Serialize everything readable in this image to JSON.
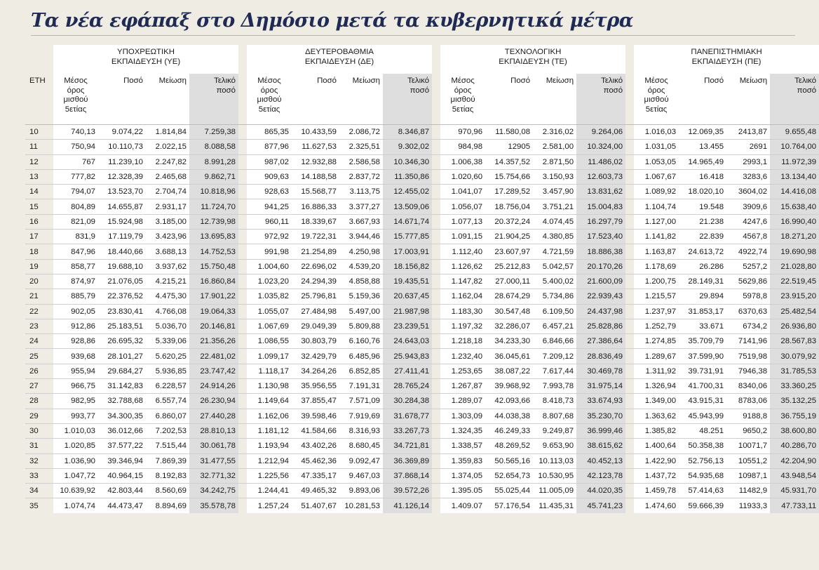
{
  "title": "Τα νέα εφάπαξ στο Δημόσιο μετά τα κυβερνητικά μέτρα",
  "header": {
    "eth_label": "ΕΤΗ",
    "groups": [
      [
        "ΥΠΟΧΡΕΩΤΙΚΗ",
        "ΕΚΠΑΙΔΕΥΣΗ (ΥΕ)"
      ],
      [
        "ΔΕΥΤΕΡΟΒΑΘΜΙΑ",
        "ΕΚΠΑΙΔΕΥΣΗ (ΔΕ)"
      ],
      [
        "ΤΕΧΝΟΛΟΓΙΚΗ",
        "ΕΚΠΑΙΔΕΥΣΗ (ΤΕ)"
      ],
      [
        "ΠΑΝΕΠΙΣΤΗΜΙΑΚΗ",
        "ΕΚΠΑΙΔΕΥΣΗ (ΠΕ)"
      ]
    ],
    "sub_a": [
      [
        "Μέσος",
        "όρος",
        "μισθού",
        "5ετίας"
      ],
      [
        "Μέσος",
        "όρος",
        "μισθού",
        "5ετίας"
      ],
      [
        "Μέσος",
        "όρος",
        "μισθού",
        "5ετίας"
      ],
      [
        "Μέσος",
        "όρος",
        "μισθού",
        "5ετίας"
      ]
    ],
    "sub_poso": "Ποσό",
    "sub_meiosi": "Μείωση",
    "sub_teliko": [
      "Τελικό",
      "ποσό"
    ]
  },
  "rows": [
    [
      "10",
      "740,13",
      "9.074,22",
      "1.814,84",
      "7.259,38",
      "865,35",
      "10.433,59",
      "2.086,72",
      "8.346,87",
      "970,96",
      "11.580,08",
      "2.316,02",
      "9.264,06",
      "1.016,03",
      "12.069,35",
      "2413,87",
      "9.655,48"
    ],
    [
      "11",
      "750,94",
      "10.110,73",
      "2.022,15",
      "8.088,58",
      "877,96",
      "11.627,53",
      "2.325,51",
      "9.302,02",
      "984,98",
      "12905",
      "2.581,00",
      "10.324,00",
      "1.031,05",
      "13.455",
      "2691",
      "10.764,00"
    ],
    [
      "12",
      "767",
      "11.239,10",
      "2.247,82",
      "8.991,28",
      "987,02",
      "12.932,88",
      "2.586,58",
      "10.346,30",
      "1.006,38",
      "14.357,52",
      "2.871,50",
      "11.486,02",
      "1.053,05",
      "14.965,49",
      "2993,1",
      "11.972,39"
    ],
    [
      "13",
      "777,82",
      "12.328,39",
      "2.465,68",
      "9.862,71",
      "909,63",
      "14.188,58",
      "2.837,72",
      "11.350,86",
      "1.020,60",
      "15.754,66",
      "3.150,93",
      "12.603,73",
      "1.067,67",
      "16.418",
      "3283,6",
      "13.134,40"
    ],
    [
      "14",
      "794,07",
      "13.523,70",
      "2.704,74",
      "10.818,96",
      "928,63",
      "15.568,77",
      "3.113,75",
      "12.455,02",
      "1.041,07",
      "17.289,52",
      "3.457,90",
      "13.831,62",
      "1.089,92",
      "18.020,10",
      "3604,02",
      "14.416,08"
    ],
    [
      "15",
      "804,89",
      "14.655,87",
      "2.931,17",
      "11.724,70",
      "941,25",
      "16.886,33",
      "3.377,27",
      "13.509,06",
      "1.056,07",
      "18.756,04",
      "3.751,21",
      "15.004,83",
      "1.104,74",
      "19.548",
      "3909,6",
      "15.638,40"
    ],
    [
      "16",
      "821,09",
      "15.924,98",
      "3.185,00",
      "12.739,98",
      "960,11",
      "18.339,67",
      "3.667,93",
      "14.671,74",
      "1.077,13",
      "20.372,24",
      "4.074,45",
      "16.297,79",
      "1.127,00",
      "21.238",
      "4247,6",
      "16.990,40"
    ],
    [
      "17",
      "831,9",
      "17.119,79",
      "3.423,96",
      "13.695,83",
      "972,92",
      "19.722,31",
      "3.944,46",
      "15.777,85",
      "1.091,15",
      "21.904,25",
      "4.380,85",
      "17.523,40",
      "1.141,82",
      "22.839",
      "4567,8",
      "18.271,20"
    ],
    [
      "18",
      "847,96",
      "18.440,66",
      "3.688,13",
      "14.752,53",
      "991,98",
      "21.254,89",
      "4.250,98",
      "17.003,91",
      "1.112,40",
      "23.607,97",
      "4.721,59",
      "18.886,38",
      "1.163,87",
      "24.613,72",
      "4922,74",
      "19.690,98"
    ],
    [
      "19",
      "858,77",
      "19.688,10",
      "3.937,62",
      "15.750,48",
      "1.004,60",
      "22.696,02",
      "4.539,20",
      "18.156,82",
      "1.126,62",
      "25.212,83",
      "5.042,57",
      "20.170,26",
      "1.178,69",
      "26.286",
      "5257,2",
      "21.028,80"
    ],
    [
      "20",
      "874,97",
      "21.076,05",
      "4.215,21",
      "16.860,84",
      "1.023,20",
      "24.294,39",
      "4.858,88",
      "19.435,51",
      "1.147,82",
      "27.000,11",
      "5.400,02",
      "21.600,09",
      "1.200,75",
      "28.149,31",
      "5629,86",
      "22.519,45"
    ],
    [
      "21",
      "885,79",
      "22.376,52",
      "4.475,30",
      "17.901,22",
      "1.035,82",
      "25.796,81",
      "5.159,36",
      "20.637,45",
      "1.162,04",
      "28.674,29",
      "5.734,86",
      "22.939,43",
      "1.215,57",
      "29.894",
      "5978,8",
      "23.915,20"
    ],
    [
      "22",
      "902,05",
      "23.830,41",
      "4.766,08",
      "19.064,33",
      "1.055,07",
      "27.484,98",
      "5.497,00",
      "21.987,98",
      "1.183,30",
      "30.547,48",
      "6.109,50",
      "24.437,98",
      "1.237,97",
      "31.853,17",
      "6370,63",
      "25.482,54"
    ],
    [
      "23",
      "912,86",
      "25.183,51",
      "5.036,70",
      "20.146,81",
      "1.067,69",
      "29.049,39",
      "5.809,88",
      "23.239,51",
      "1.197,32",
      "32.286,07",
      "6.457,21",
      "25.828,86",
      "1.252,79",
      "33.671",
      "6734,2",
      "26.936,80"
    ],
    [
      "24",
      "928,86",
      "26.695,32",
      "5.339,06",
      "21.356,26",
      "1.086,55",
      "30.803,79",
      "6.160,76",
      "24.643,03",
      "1.218,18",
      "34.233,30",
      "6.846,66",
      "27.386,64",
      "1.274,85",
      "35.709,79",
      "7141,96",
      "28.567,83"
    ],
    [
      "25",
      "939,68",
      "28.101,27",
      "5.620,25",
      "22.481,02",
      "1.099,17",
      "32.429,79",
      "6.485,96",
      "25.943,83",
      "1.232,40",
      "36.045,61",
      "7.209,12",
      "28.836,49",
      "1.289,67",
      "37.599,90",
      "7519,98",
      "30.079,92"
    ],
    [
      "26",
      "955,94",
      "29.684,27",
      "5.936,85",
      "23.747,42",
      "1.118,17",
      "34.264,26",
      "6.852,85",
      "27.411,41",
      "1.253,65",
      "38.087,22",
      "7.617,44",
      "30.469,78",
      "1.311,92",
      "39.731,91",
      "7946,38",
      "31.785,53"
    ],
    [
      "27",
      "966,75",
      "31.142,83",
      "6.228,57",
      "24.914,26",
      "1.130,98",
      "35.956,55",
      "7.191,31",
      "28.765,24",
      "1.267,87",
      "39.968,92",
      "7.993,78",
      "31.975,14",
      "1.326,94",
      "41.700,31",
      "8340,06",
      "33.360,25"
    ],
    [
      "28",
      "982,95",
      "32.788,68",
      "6.557,74",
      "26.230,94",
      "1.149,64",
      "37.855,47",
      "7.571,09",
      "30.284,38",
      "1.289,07",
      "42.093,66",
      "8.418,73",
      "33.674,93",
      "1.349,00",
      "43.915,31",
      "8783,06",
      "35.132,25"
    ],
    [
      "29",
      "993,77",
      "34.300,35",
      "6.860,07",
      "27.440,28",
      "1.162,06",
      "39.598,46",
      "7.919,69",
      "31.678,77",
      "1.303,09",
      "44.038,38",
      "8.807,68",
      "35.230,70",
      "1.363,62",
      "45.943,99",
      "9188,8",
      "36.755,19"
    ],
    [
      "30",
      "1.010,03",
      "36.012,66",
      "7.202,53",
      "28.810,13",
      "1.181,12",
      "41.584,66",
      "8.316,93",
      "33.267,73",
      "1.324,35",
      "46.249,33",
      "9.249,87",
      "36.999,46",
      "1.385,82",
      "48.251",
      "9650,2",
      "38.600,80"
    ],
    [
      "31",
      "1.020,85",
      "37.577,22",
      "7.515,44",
      "30.061,78",
      "1.193,94",
      "43.402,26",
      "8.680,45",
      "34.721,81",
      "1.338,57",
      "48.269,52",
      "9.653,90",
      "38.615,62",
      "1.400,64",
      "50.358,38",
      "10071,7",
      "40.286,70"
    ],
    [
      "32",
      "1.036,90",
      "39.346,94",
      "7.869,39",
      "31.477,55",
      "1.212,94",
      "45.462,36",
      "9.092,47",
      "36.369,89",
      "1.359,83",
      "50.565,16",
      "10.113,03",
      "40.452,13",
      "1.422,90",
      "52.756,13",
      "10551,2",
      "42.204,90"
    ],
    [
      "33",
      "1.047,72",
      "40.964,15",
      "8.192,83",
      "32.771,32",
      "1.225,56",
      "47.335,17",
      "9.467,03",
      "37.868,14",
      "1.374,05",
      "52.654,73",
      "10.530,95",
      "42.123,78",
      "1.437,72",
      "54.935,68",
      "10987,1",
      "43.948,54"
    ],
    [
      "34",
      "10.639,92",
      "42.803,44",
      "8.560,69",
      "34.242,75",
      "1.244,41",
      "49.465,32",
      "9.893,06",
      "39.572,26",
      "1.395.05",
      "55.025,44",
      "11.005,09",
      "44.020,35",
      "1.459,78",
      "57.414,63",
      "11482,9",
      "45.931,70"
    ],
    [
      "35",
      "1.074,74",
      "44.473,47",
      "8.894,69",
      "35.578,78",
      "1.257,24",
      "51.407,67",
      "10.281,53",
      "41.126,14",
      "1.409.07",
      "57.176,54",
      "11.435,31",
      "45.741,23",
      "1.474,60",
      "59.666,39",
      "11933,3",
      "47.733,11"
    ]
  ]
}
